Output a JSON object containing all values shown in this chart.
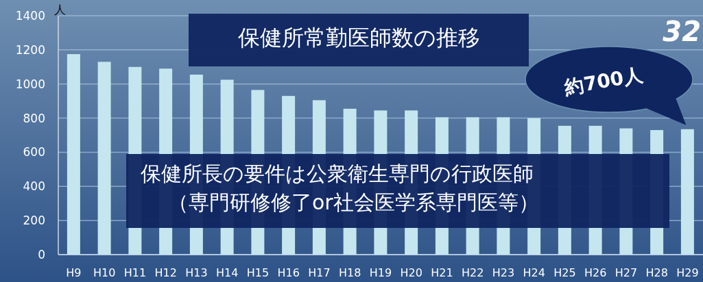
{
  "chart_data": {
    "type": "bar",
    "title": "保健所常勤医師数の推移",
    "ylabel": "人",
    "categories": [
      "H9",
      "H10",
      "H11",
      "H12",
      "H13",
      "H14",
      "H15",
      "H16",
      "H17",
      "H18",
      "H19",
      "H20",
      "H21",
      "H22",
      "H23",
      "H24",
      "H25",
      "H26",
      "H27",
      "H28",
      "H29"
    ],
    "values": [
      1175,
      1130,
      1100,
      1090,
      1055,
      1025,
      965,
      930,
      905,
      855,
      845,
      845,
      805,
      805,
      805,
      800,
      755,
      755,
      740,
      730,
      735
    ],
    "color": "#c5e6ee",
    "ylim": [
      0,
      1400
    ],
    "yticks": [
      0,
      200,
      400,
      600,
      800,
      1000,
      1200,
      1400
    ],
    "grid": "y",
    "annotations": [
      {
        "text": "約700人",
        "x": "H29",
        "y": 735
      },
      "保健所長の要件は公衆衛生専門の行政医師",
      "（専門研修修了or社会医学系専門医等）",
      "32"
    ]
  }
}
